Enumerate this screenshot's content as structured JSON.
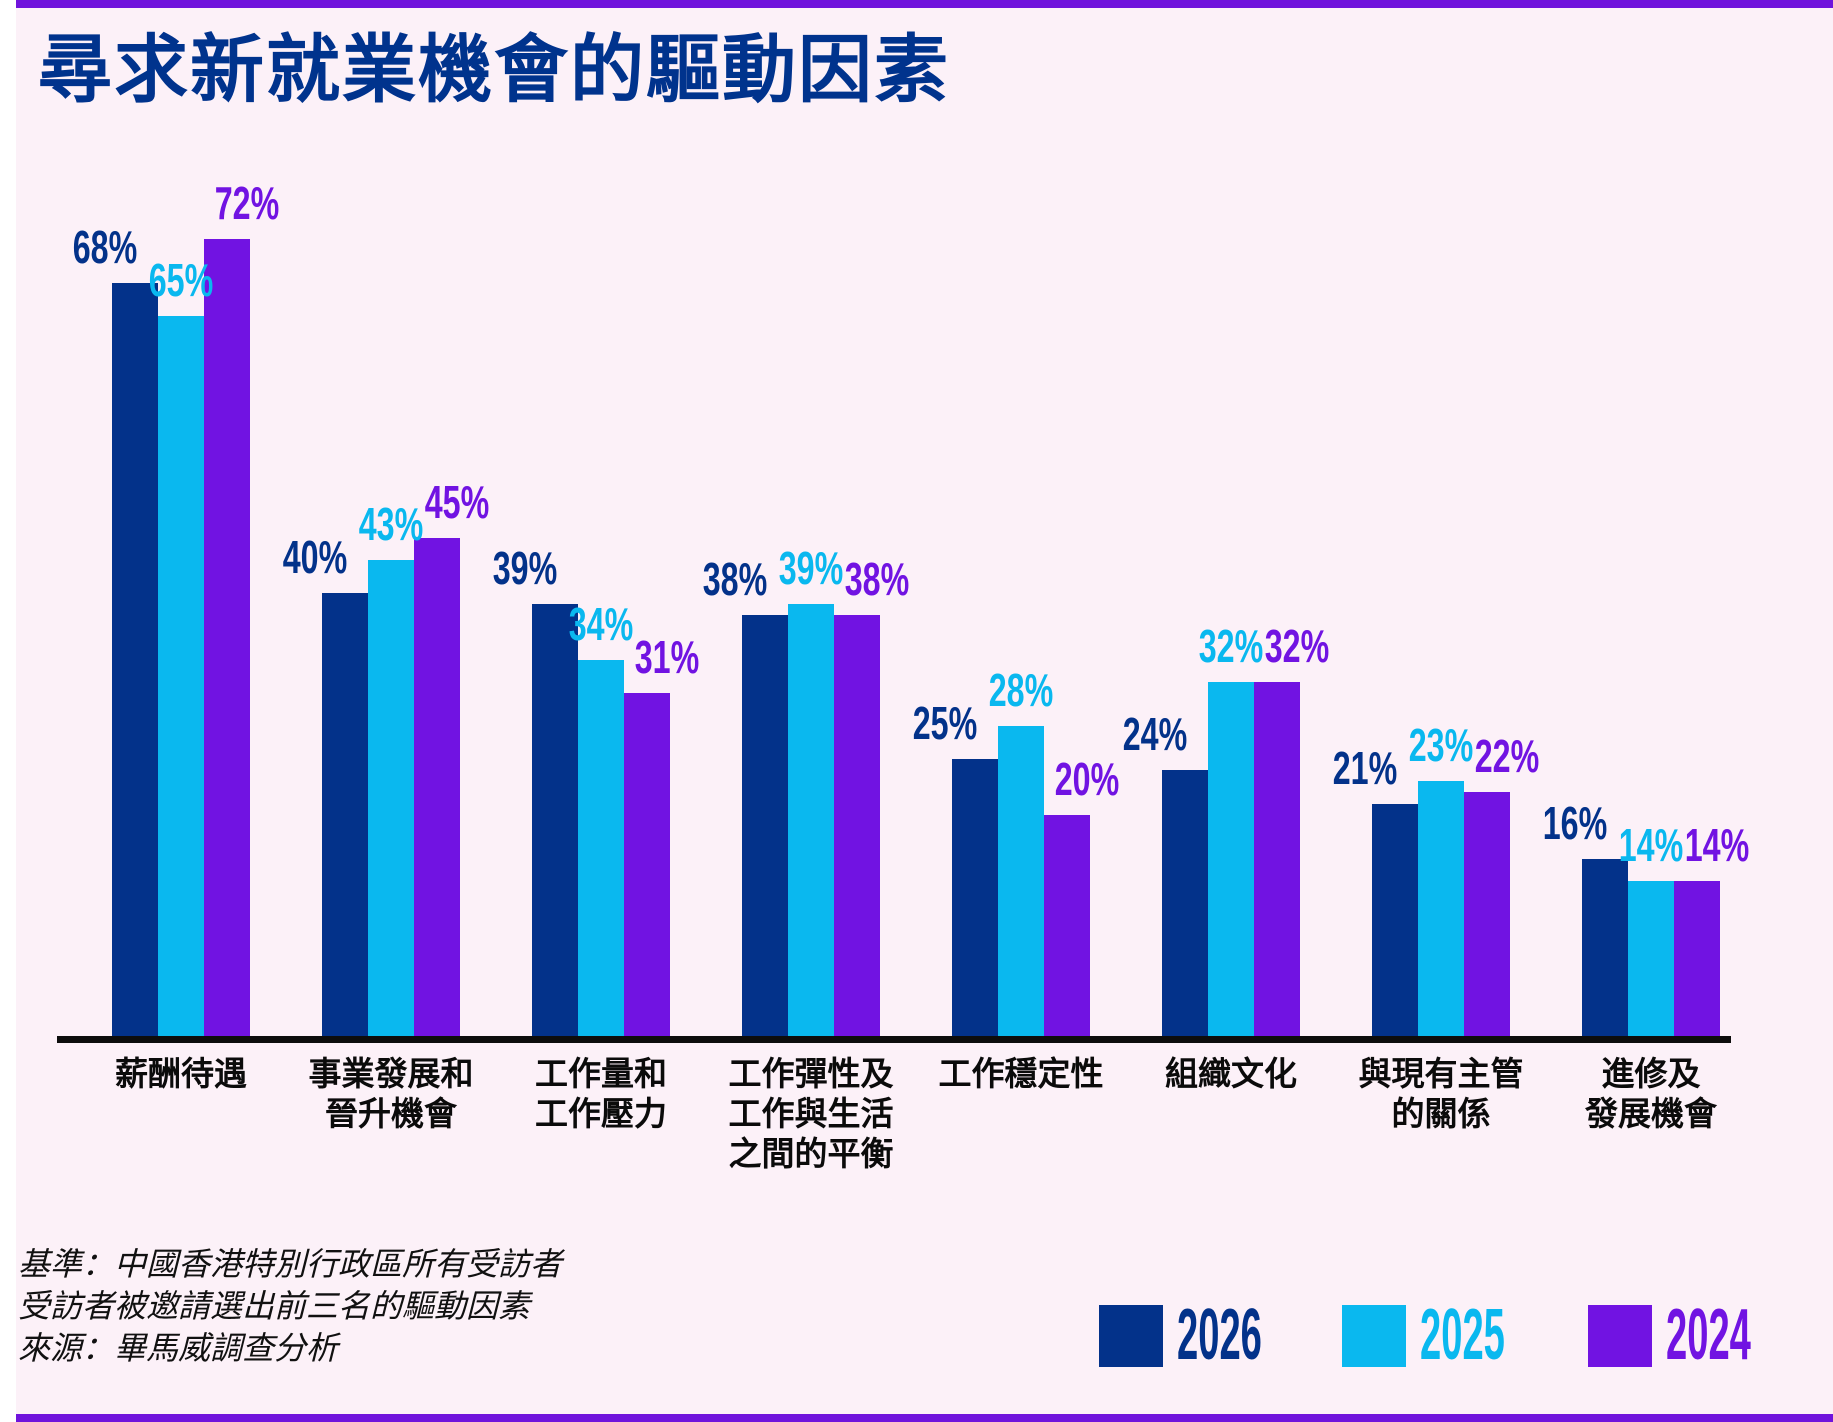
{
  "title": "尋求新就業機會的驅動因素",
  "colors": {
    "navy": "#03328a",
    "cyan": "#0ab8ef",
    "purple": "#7113e2",
    "border_strip": "#7013dc",
    "background": "#fcf1f8",
    "title_text": "#00338d",
    "axis": "#0d0d0d"
  },
  "footnotes": [
    "基準：中國香港特別行政區所有受訪者",
    "受訪者被邀請選出前三名的驅動因素",
    "來源：畢馬威調查分析"
  ],
  "legend": [
    {
      "label": "2026",
      "color": "#03328a"
    },
    {
      "label": "2025",
      "color": "#0ab8ef"
    },
    {
      "label": "2024",
      "color": "#7113e2"
    }
  ],
  "chart_data": {
    "type": "bar",
    "title": "尋求新就業機會的驅動因素",
    "unit": "%",
    "categories": [
      "薪酬待遇",
      "事業發展和\n晉升機會",
      "工作量和\n工作壓力",
      "工作彈性及\n工作與生活\n之間的平衡",
      "工作穩定性",
      "組織文化",
      "與現有主管\n的關係",
      "進修及\n發展機會"
    ],
    "series": [
      {
        "name": "2026",
        "color": "#03328a",
        "values": [
          68,
          40,
          39,
          38,
          25,
          24,
          21,
          16
        ]
      },
      {
        "name": "2025",
        "color": "#0ab8ef",
        "values": [
          65,
          43,
          34,
          39,
          28,
          32,
          23,
          14
        ]
      },
      {
        "name": "2024",
        "color": "#7113e2",
        "values": [
          72,
          45,
          31,
          38,
          20,
          32,
          22,
          14
        ]
      }
    ],
    "value_labels": true,
    "ylim": [
      0,
      100
    ],
    "grid": false,
    "y_axis_shown": false,
    "legend_position": "bottom-right"
  }
}
